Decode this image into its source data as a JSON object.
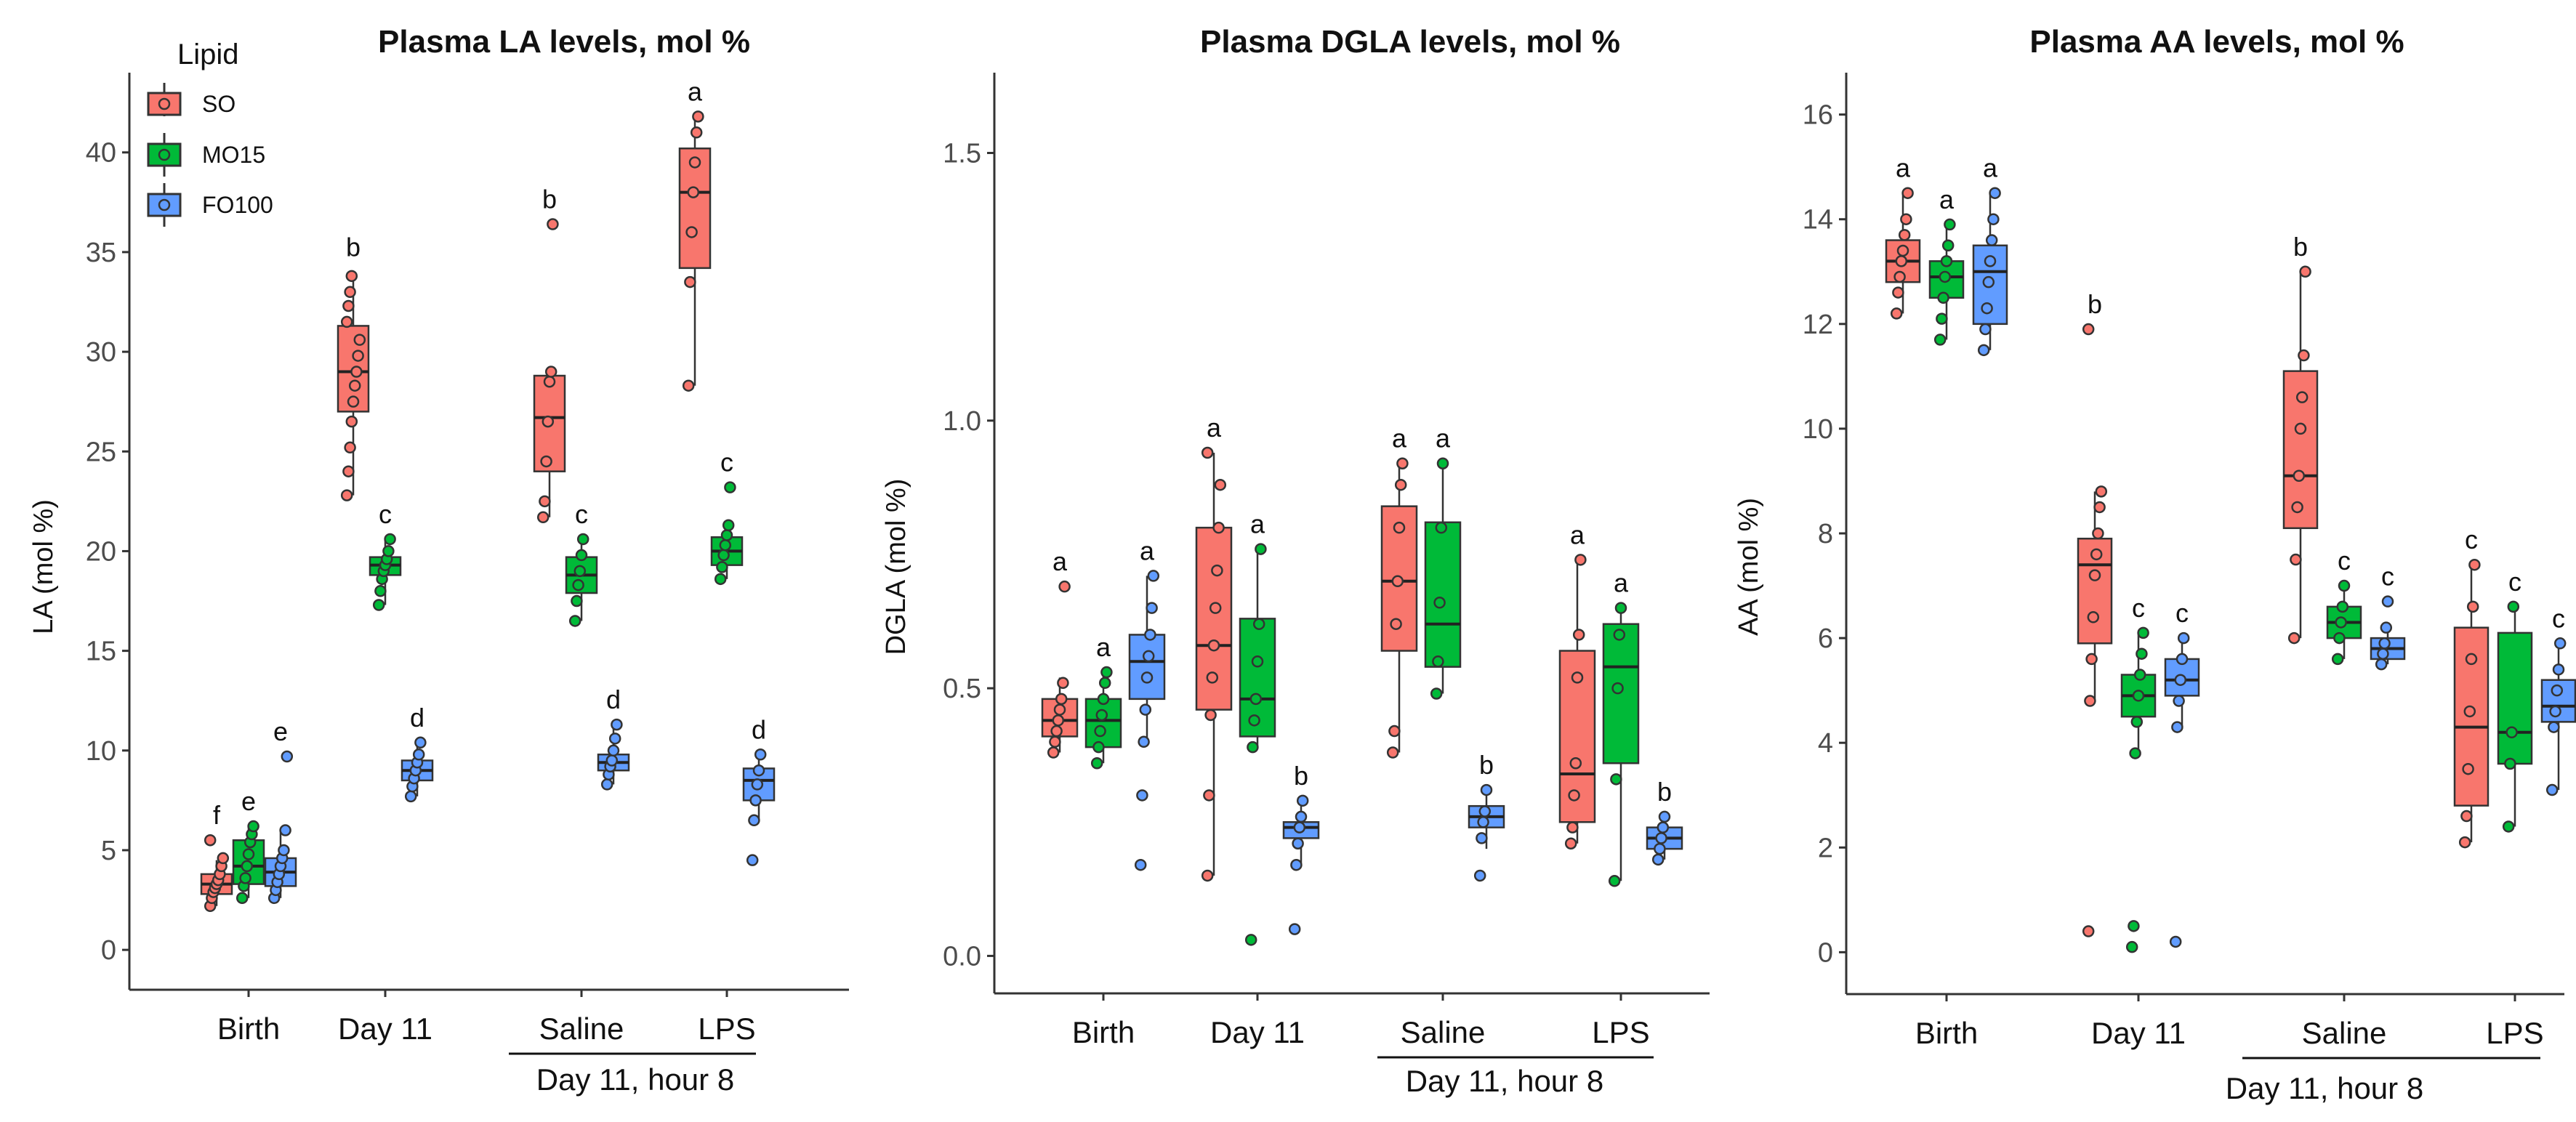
{
  "legend": {
    "title": "Lipid",
    "items": [
      {
        "label": "SO",
        "color": "#F8766D"
      },
      {
        "label": "MO15",
        "color": "#00BA38"
      },
      {
        "label": "FO100",
        "color": "#619CFF"
      }
    ]
  },
  "chart_data": [
    {
      "type": "box",
      "title": "Plasma LA levels, mol %",
      "ylabel": "LA (mol %)",
      "ylim": [
        -2,
        44
      ],
      "yticks": [
        "0",
        "5",
        "10",
        "15",
        "20",
        "25",
        "30",
        "35",
        "40"
      ],
      "categories": [
        "Birth",
        "Day 11",
        "Saline",
        "LPS"
      ],
      "group_label": "Day 11, hour 8",
      "series_names": [
        "SO",
        "MO15",
        "FO100"
      ],
      "boxes": [
        {
          "category": "Birth",
          "series": "SO",
          "letter": "f",
          "q1": 2.8,
          "median": 3.3,
          "q3": 3.8,
          "wmin": 2.2,
          "wmax": 4.5,
          "points": [
            2.2,
            2.6,
            2.9,
            3.1,
            3.3,
            3.5,
            3.8,
            4.2,
            4.6,
            5.5
          ]
        },
        {
          "category": "Birth",
          "series": "MO15",
          "letter": "e",
          "q1": 3.3,
          "median": 4.2,
          "q3": 5.5,
          "wmin": 2.6,
          "wmax": 6.2,
          "points": [
            2.6,
            3.2,
            3.6,
            4.2,
            4.8,
            5.4,
            5.8,
            6.2
          ]
        },
        {
          "category": "Birth",
          "series": "FO100",
          "letter": "e",
          "q1": 3.2,
          "median": 3.9,
          "q3": 4.6,
          "wmin": 2.6,
          "wmax": 6.0,
          "points": [
            2.6,
            3.0,
            3.4,
            3.8,
            4.2,
            4.6,
            5.0,
            6.0,
            9.7
          ]
        },
        {
          "category": "Day 11",
          "series": "SO",
          "letter": "b",
          "q1": 27.0,
          "median": 29.0,
          "q3": 31.3,
          "wmin": 22.8,
          "wmax": 34.0,
          "points": [
            22.8,
            24.0,
            25.2,
            26.5,
            27.5,
            28.3,
            29.0,
            29.8,
            30.6,
            31.5,
            32.3,
            33.0,
            33.8
          ]
        },
        {
          "category": "Day 11",
          "series": "MO15",
          "letter": "c",
          "q1": 18.8,
          "median": 19.3,
          "q3": 19.7,
          "wmin": 17.3,
          "wmax": 20.6,
          "points": [
            17.3,
            18.0,
            18.6,
            19.0,
            19.3,
            19.6,
            20.0,
            20.6
          ]
        },
        {
          "category": "Day 11",
          "series": "FO100",
          "letter": "d",
          "q1": 8.5,
          "median": 9.0,
          "q3": 9.5,
          "wmin": 7.7,
          "wmax": 10.4,
          "points": [
            7.7,
            8.2,
            8.6,
            9.0,
            9.4,
            9.8,
            10.4
          ]
        },
        {
          "category": "Saline",
          "series": "SO",
          "letter": "b",
          "q1": 24.0,
          "median": 26.7,
          "q3": 28.8,
          "wmin": 21.7,
          "wmax": 29.0,
          "points": [
            21.7,
            22.5,
            24.5,
            26.5,
            28.5,
            29.0,
            36.4
          ]
        },
        {
          "category": "Saline",
          "series": "MO15",
          "letter": "c",
          "q1": 17.9,
          "median": 18.8,
          "q3": 19.7,
          "wmin": 16.5,
          "wmax": 20.6,
          "points": [
            16.5,
            17.5,
            18.3,
            19.0,
            19.8,
            20.6
          ]
        },
        {
          "category": "Saline",
          "series": "FO100",
          "letter": "d",
          "q1": 9.0,
          "median": 9.4,
          "q3": 9.8,
          "wmin": 8.3,
          "wmax": 11.3,
          "points": [
            8.3,
            8.8,
            9.2,
            9.5,
            10.0,
            10.6,
            11.3
          ]
        },
        {
          "category": "LPS",
          "series": "SO",
          "letter": "a",
          "q1": 34.2,
          "median": 38.0,
          "q3": 40.2,
          "wmin": 28.3,
          "wmax": 41.8,
          "points": [
            28.3,
            33.5,
            36.0,
            38.0,
            39.5,
            41.0,
            41.8
          ]
        },
        {
          "category": "LPS",
          "series": "MO15",
          "letter": "c",
          "q1": 19.3,
          "median": 20.0,
          "q3": 20.7,
          "wmin": 18.6,
          "wmax": 21.3,
          "points": [
            18.6,
            19.2,
            19.8,
            20.3,
            20.8,
            21.3,
            23.2
          ]
        },
        {
          "category": "LPS",
          "series": "FO100",
          "letter": "d",
          "q1": 7.5,
          "median": 8.5,
          "q3": 9.1,
          "wmin": 6.5,
          "wmax": 9.8,
          "points": [
            4.5,
            6.5,
            7.5,
            8.3,
            9.0,
            9.8
          ]
        }
      ]
    },
    {
      "type": "box",
      "title": "Plasma DGLA levels, mol %",
      "ylabel": "DGLA (mol %)",
      "ylim": [
        -0.07,
        1.65
      ],
      "yticks": [
        "0.0",
        "0.5",
        "1.0",
        "1.5"
      ],
      "categories": [
        "Birth",
        "Day 11",
        "Saline",
        "LPS"
      ],
      "group_label": "Day 11, hour 8",
      "series_names": [
        "SO",
        "MO15",
        "FO100"
      ],
      "boxes": [
        {
          "category": "Birth",
          "series": "SO",
          "letter": "a",
          "q1": 0.41,
          "median": 0.44,
          "q3": 0.48,
          "wmin": 0.38,
          "wmax": 0.52,
          "points": [
            0.38,
            0.4,
            0.42,
            0.44,
            0.46,
            0.48,
            0.51,
            0.69
          ]
        },
        {
          "category": "Birth",
          "series": "MO15",
          "letter": "a",
          "q1": 0.39,
          "median": 0.44,
          "q3": 0.48,
          "wmin": 0.36,
          "wmax": 0.53,
          "points": [
            0.36,
            0.39,
            0.42,
            0.45,
            0.48,
            0.51,
            0.53
          ]
        },
        {
          "category": "Birth",
          "series": "FO100",
          "letter": "a",
          "q1": 0.48,
          "median": 0.55,
          "q3": 0.6,
          "wmin": 0.4,
          "wmax": 0.71,
          "points": [
            0.17,
            0.3,
            0.4,
            0.46,
            0.52,
            0.56,
            0.6,
            0.65,
            0.71
          ]
        },
        {
          "category": "Day 11",
          "series": "SO",
          "letter": "a",
          "q1": 0.46,
          "median": 0.58,
          "q3": 0.8,
          "wmin": 0.15,
          "wmax": 0.94,
          "points": [
            0.15,
            0.3,
            0.45,
            0.52,
            0.58,
            0.65,
            0.72,
            0.8,
            0.88,
            0.94
          ]
        },
        {
          "category": "Day 11",
          "series": "MO15",
          "letter": "a",
          "q1": 0.41,
          "median": 0.48,
          "q3": 0.63,
          "wmin": 0.39,
          "wmax": 0.76,
          "points": [
            0.03,
            0.39,
            0.44,
            0.48,
            0.55,
            0.62,
            0.76
          ]
        },
        {
          "category": "Day 11",
          "series": "FO100",
          "letter": "b",
          "q1": 0.22,
          "median": 0.24,
          "q3": 0.25,
          "wmin": 0.17,
          "wmax": 0.29,
          "points": [
            0.05,
            0.17,
            0.21,
            0.24,
            0.26,
            0.29
          ]
        },
        {
          "category": "Saline",
          "series": "SO",
          "letter": "a",
          "q1": 0.57,
          "median": 0.7,
          "q3": 0.84,
          "wmin": 0.38,
          "wmax": 0.92,
          "points": [
            0.38,
            0.42,
            0.62,
            0.7,
            0.8,
            0.88,
            0.92
          ]
        },
        {
          "category": "Saline",
          "series": "MO15",
          "letter": "a",
          "q1": 0.54,
          "median": 0.62,
          "q3": 0.81,
          "wmin": 0.49,
          "wmax": 0.92,
          "points": [
            0.49,
            0.55,
            0.66,
            0.8,
            0.92
          ]
        },
        {
          "category": "Saline",
          "series": "FO100",
          "letter": "b",
          "q1": 0.24,
          "median": 0.26,
          "q3": 0.28,
          "wmin": 0.2,
          "wmax": 0.31,
          "points": [
            0.15,
            0.22,
            0.25,
            0.27,
            0.31
          ]
        },
        {
          "category": "LPS",
          "series": "SO",
          "letter": "a",
          "q1": 0.25,
          "median": 0.34,
          "q3": 0.57,
          "wmin": 0.21,
          "wmax": 0.74,
          "points": [
            0.21,
            0.24,
            0.3,
            0.36,
            0.52,
            0.6,
            0.74
          ]
        },
        {
          "category": "LPS",
          "series": "MO15",
          "letter": "a",
          "q1": 0.36,
          "median": 0.54,
          "q3": 0.62,
          "wmin": 0.14,
          "wmax": 0.65,
          "points": [
            0.14,
            0.33,
            0.5,
            0.6,
            0.65
          ]
        },
        {
          "category": "LPS",
          "series": "FO100",
          "letter": "b",
          "q1": 0.2,
          "median": 0.22,
          "q3": 0.24,
          "wmin": 0.18,
          "wmax": 0.26,
          "points": [
            0.18,
            0.2,
            0.22,
            0.24,
            0.26
          ]
        }
      ]
    },
    {
      "type": "box",
      "title": "Plasma AA levels, mol %",
      "ylabel": "AA (mol %)",
      "ylim": [
        -0.8,
        16.8
      ],
      "yticks": [
        "0",
        "2",
        "4",
        "6",
        "8",
        "10",
        "12",
        "14",
        "16"
      ],
      "categories": [
        "Birth",
        "Day 11",
        "Saline",
        "LPS"
      ],
      "group_label": "Day 11, hour 8",
      "series_names": [
        "SO",
        "MO15",
        "FO100"
      ],
      "boxes": [
        {
          "category": "Birth",
          "series": "SO",
          "letter": "a",
          "q1": 12.8,
          "median": 13.2,
          "q3": 13.6,
          "wmin": 12.2,
          "wmax": 14.5,
          "points": [
            12.2,
            12.6,
            12.9,
            13.2,
            13.4,
            13.7,
            14.0,
            14.5
          ]
        },
        {
          "category": "Birth",
          "series": "MO15",
          "letter": "a",
          "q1": 12.5,
          "median": 12.9,
          "q3": 13.2,
          "wmin": 11.7,
          "wmax": 13.9,
          "points": [
            11.7,
            12.1,
            12.5,
            12.9,
            13.2,
            13.5,
            13.9
          ]
        },
        {
          "category": "Birth",
          "series": "FO100",
          "letter": "a",
          "q1": 12.0,
          "median": 13.0,
          "q3": 13.5,
          "wmin": 11.5,
          "wmax": 14.5,
          "points": [
            11.5,
            11.9,
            12.3,
            12.8,
            13.2,
            13.6,
            14.0,
            14.5
          ]
        },
        {
          "category": "Day 11",
          "series": "SO",
          "letter": "b",
          "q1": 5.9,
          "median": 7.4,
          "q3": 7.9,
          "wmin": 4.8,
          "wmax": 8.8,
          "points": [
            0.4,
            4.8,
            5.6,
            6.4,
            7.2,
            7.6,
            8.0,
            8.5,
            8.8,
            11.9
          ]
        },
        {
          "category": "Day 11",
          "series": "MO15",
          "letter": "c",
          "q1": 4.5,
          "median": 4.9,
          "q3": 5.3,
          "wmin": 3.8,
          "wmax": 6.1,
          "points": [
            0.1,
            0.5,
            3.8,
            4.4,
            4.9,
            5.3,
            5.7,
            6.1
          ]
        },
        {
          "category": "Day 11",
          "series": "FO100",
          "letter": "c",
          "q1": 4.9,
          "median": 5.2,
          "q3": 5.6,
          "wmin": 4.3,
          "wmax": 6.0,
          "points": [
            0.2,
            4.3,
            4.8,
            5.2,
            5.6,
            6.0
          ]
        },
        {
          "category": "Saline",
          "series": "SO",
          "letter": "b",
          "q1": 8.1,
          "median": 9.1,
          "q3": 11.1,
          "wmin": 6.0,
          "wmax": 13.0,
          "points": [
            6.0,
            7.5,
            8.5,
            9.1,
            10.0,
            10.6,
            11.4,
            13.0
          ]
        },
        {
          "category": "Saline",
          "series": "MO15",
          "letter": "c",
          "q1": 6.0,
          "median": 6.3,
          "q3": 6.6,
          "wmin": 5.6,
          "wmax": 7.0,
          "points": [
            5.6,
            6.0,
            6.3,
            6.6,
            7.0
          ]
        },
        {
          "category": "Saline",
          "series": "FO100",
          "letter": "c",
          "q1": 5.6,
          "median": 5.8,
          "q3": 6.0,
          "wmin": 5.5,
          "wmax": 6.2,
          "points": [
            5.5,
            5.7,
            5.9,
            6.2,
            6.7
          ]
        },
        {
          "category": "LPS",
          "series": "SO",
          "letter": "c",
          "q1": 2.8,
          "median": 4.3,
          "q3": 6.2,
          "wmin": 2.1,
          "wmax": 7.4,
          "points": [
            2.1,
            2.6,
            3.5,
            4.6,
            5.6,
            6.6,
            7.4
          ]
        },
        {
          "category": "LPS",
          "series": "MO15",
          "letter": "c",
          "q1": 3.6,
          "median": 4.2,
          "q3": 6.1,
          "wmin": 2.4,
          "wmax": 6.6,
          "points": [
            2.4,
            3.6,
            4.2,
            6.6
          ]
        },
        {
          "category": "LPS",
          "series": "FO100",
          "letter": "c",
          "q1": 4.4,
          "median": 4.7,
          "q3": 5.2,
          "wmin": 3.1,
          "wmax": 5.9,
          "points": [
            3.1,
            4.3,
            4.6,
            5.0,
            5.4,
            5.9
          ]
        }
      ]
    }
  ]
}
